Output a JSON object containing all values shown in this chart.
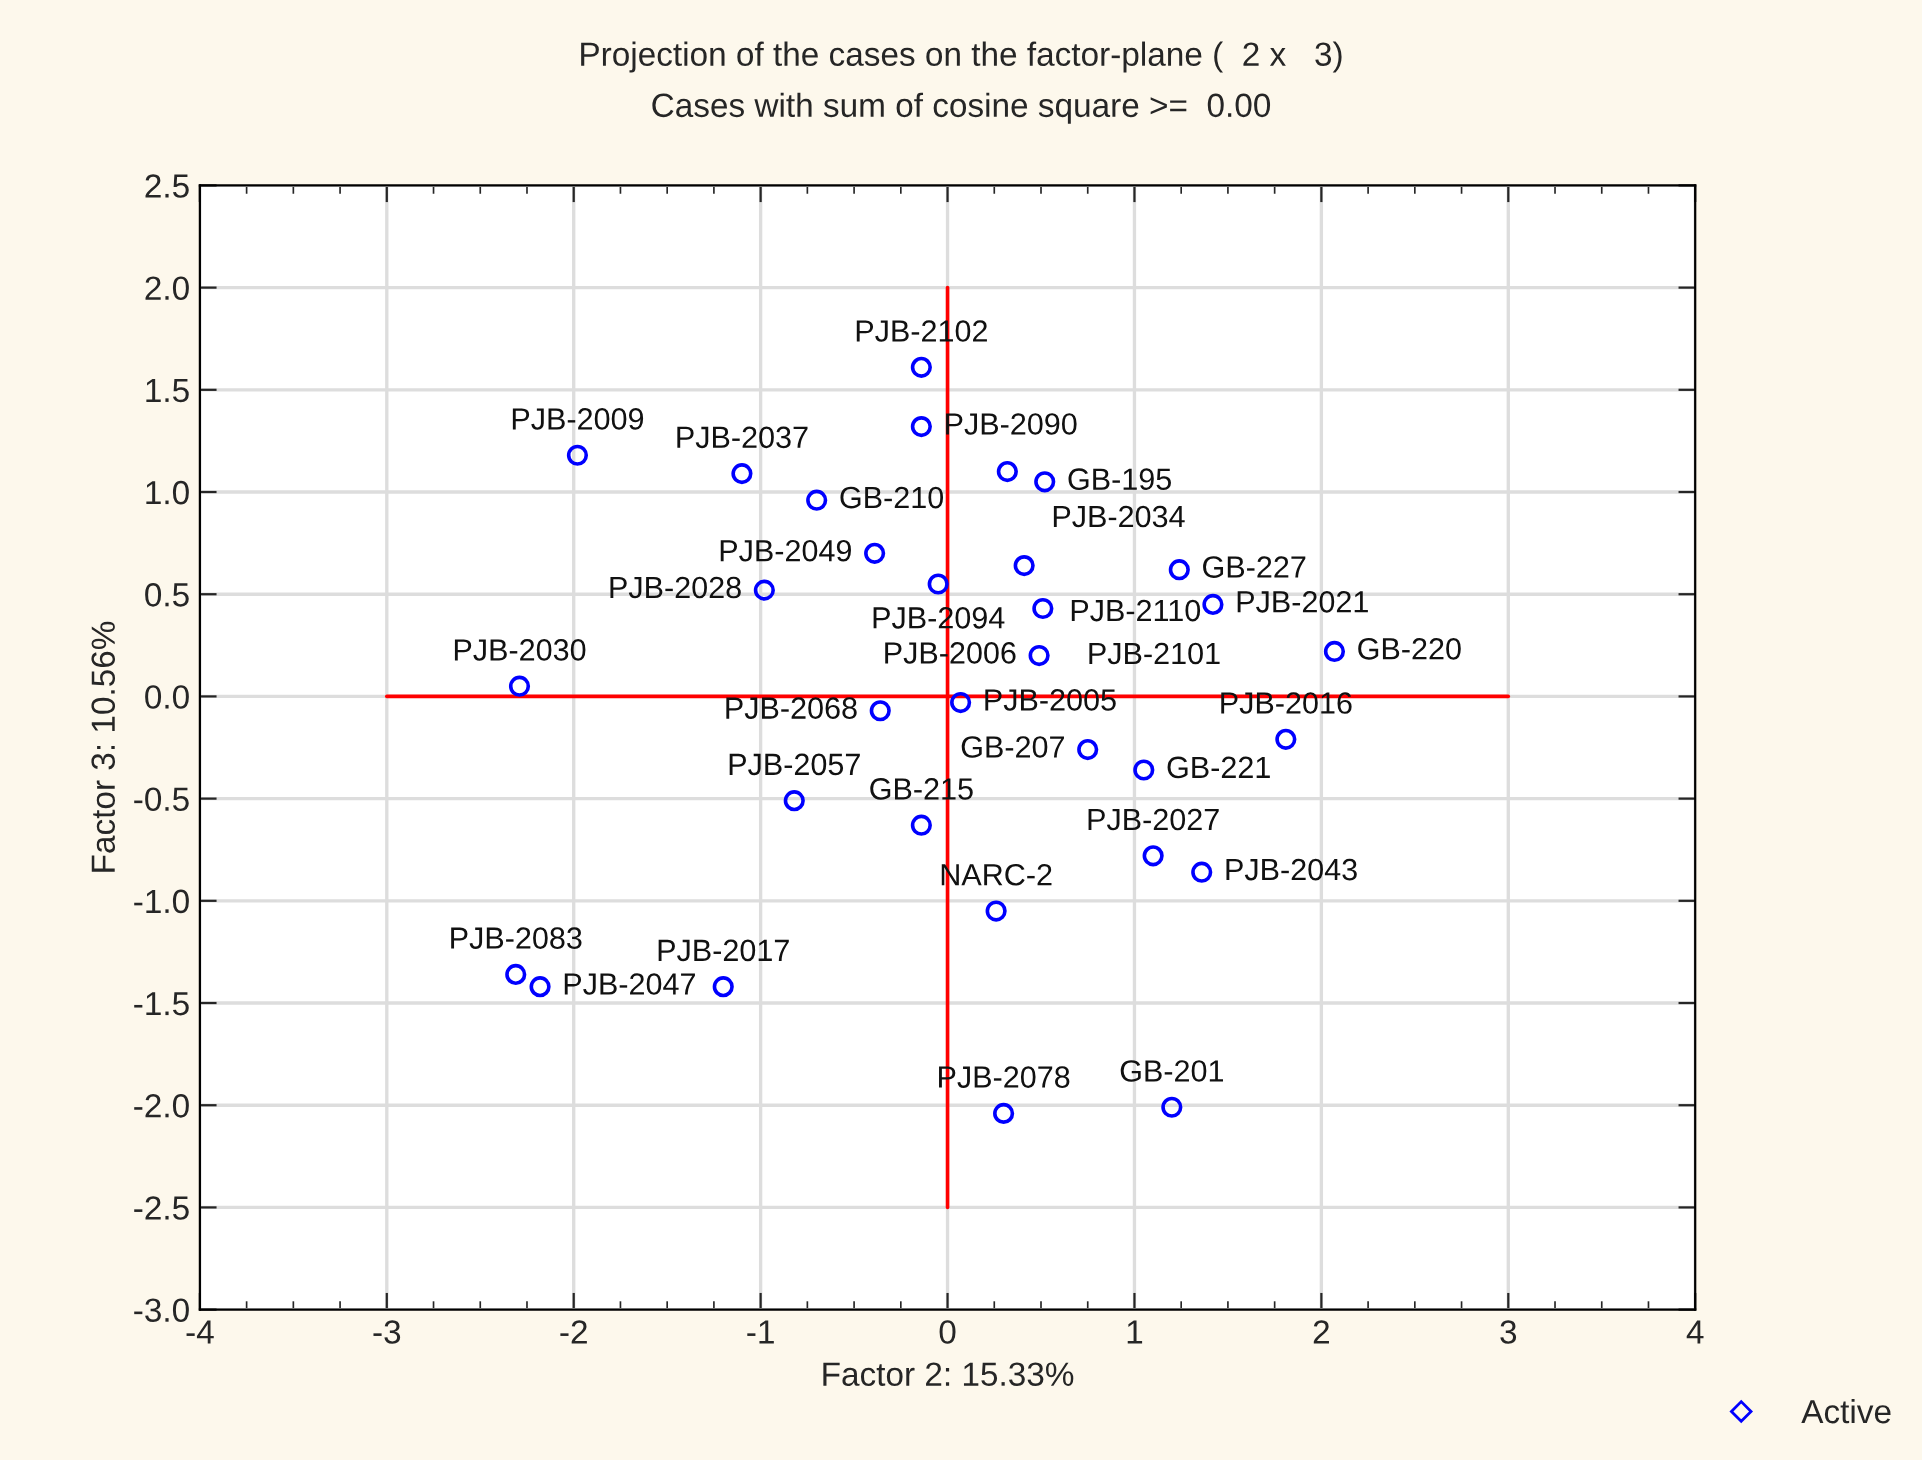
{
  "chart_data": {
    "type": "scatter",
    "title": "Projection of the cases on the factor-plane (  2 x   3)",
    "subtitle": "Cases with sum of cosine square >=  0.00",
    "xlabel": "Factor 2: 15.33%",
    "ylabel": "Factor 3: 10.56%",
    "xlim": [
      -4,
      4
    ],
    "xticks": [
      -4,
      -3,
      -2,
      -1,
      0,
      1,
      2,
      3,
      4
    ],
    "ylim": [
      -3.0,
      2.5
    ],
    "yticks": [
      {
        "value": -3.0,
        "label": "-3.0"
      },
      {
        "value": -2.5,
        "label": "-2.5"
      },
      {
        "value": -2.0,
        "label": "-2.0"
      },
      {
        "value": -1.5,
        "label": "-1.5"
      },
      {
        "value": -1.0,
        "label": "-1.0"
      },
      {
        "value": -0.5,
        "label": "-0.5"
      },
      {
        "value": 0.0,
        "label": "0.0"
      },
      {
        "value": 0.5,
        "label": "0.5"
      },
      {
        "value": 1.0,
        "label": "1.0"
      },
      {
        "value": 1.5,
        "label": "1.5"
      },
      {
        "value": 2.0,
        "label": "2.0"
      },
      {
        "value": 2.5,
        "label": "2.5"
      }
    ],
    "grid": true,
    "legend": "bottom right",
    "marker": "circle",
    "series": [
      {
        "name": "Active",
        "color": "#0000ff",
        "x": [
          -0.14,
          -0.14,
          -1.98,
          -1.1,
          -0.7,
          -0.39,
          -0.05,
          -0.98,
          -2.29,
          0.32,
          0.52,
          0.41,
          1.24,
          1.42,
          0.51,
          0.49,
          2.07,
          -0.36,
          0.07,
          0.75,
          1.05,
          1.81,
          -0.82,
          -0.14,
          1.1,
          1.36,
          0.26,
          -2.31,
          -2.18,
          -1.2,
          0.3,
          1.2
        ],
        "values": [
          1.61,
          1.32,
          1.18,
          1.09,
          0.96,
          0.7,
          0.55,
          0.52,
          0.05,
          1.1,
          1.05,
          0.64,
          0.62,
          0.45,
          0.43,
          0.2,
          0.22,
          -0.07,
          -0.03,
          -0.26,
          -0.36,
          -0.21,
          -0.51,
          -0.63,
          -0.78,
          -0.86,
          -1.05,
          -1.36,
          -1.42,
          -1.42,
          -2.04,
          -2.01
        ]
      },
      {
        "type": "line",
        "color": "#ff0000",
        "marker": "none",
        "x": [
          -3,
          3
        ],
        "values": [
          0,
          0
        ]
      },
      {
        "type": "line",
        "color": "#ff0000",
        "marker": "none",
        "x": [
          0,
          0
        ],
        "values": [
          2.0,
          -2.5
        ]
      }
    ],
    "annotations": [
      {
        "text": "PJB-2102",
        "x": -0.14,
        "y": 1.61
      },
      {
        "text": "PJB-2090",
        "x": -0.14,
        "y": 1.32
      },
      {
        "text": "PJB-2009",
        "x": -1.98,
        "y": 1.18
      },
      {
        "text": "PJB-2037",
        "x": -1.1,
        "y": 1.09
      },
      {
        "text": "GB-210",
        "x": -0.7,
        "y": 0.96
      },
      {
        "text": "PJB-2049",
        "x": -0.39,
        "y": 0.7
      },
      {
        "text": "PJB-2094",
        "x": -0.05,
        "y": 0.55
      },
      {
        "text": "PJB-2028",
        "x": -0.98,
        "y": 0.52
      },
      {
        "text": "PJB-2030",
        "x": -2.29,
        "y": 0.05
      },
      {
        "text": "PJB-2034",
        "x": 0.32,
        "y": 1.1
      },
      {
        "text": "GB-195",
        "x": 0.52,
        "y": 1.05
      },
      {
        "text": "PJB-2110",
        "x": 0.41,
        "y": 0.64
      },
      {
        "text": "GB-227",
        "x": 1.24,
        "y": 0.62
      },
      {
        "text": "PJB-2021",
        "x": 1.42,
        "y": 0.45
      },
      {
        "text": "PJB-2101",
        "x": 0.51,
        "y": 0.43
      },
      {
        "text": "PJB-2006",
        "x": 0.49,
        "y": 0.2
      },
      {
        "text": "GB-220",
        "x": 2.07,
        "y": 0.22
      },
      {
        "text": "PJB-2068",
        "x": -0.36,
        "y": -0.07
      },
      {
        "text": "PJB-2005",
        "x": 0.07,
        "y": -0.03
      },
      {
        "text": "GB-207",
        "x": 0.75,
        "y": -0.26
      },
      {
        "text": "GB-221",
        "x": 1.05,
        "y": -0.36
      },
      {
        "text": "PJB-2016",
        "x": 1.81,
        "y": -0.21
      },
      {
        "text": "PJB-2057",
        "x": -0.82,
        "y": -0.51
      },
      {
        "text": "GB-215",
        "x": -0.14,
        "y": -0.63
      },
      {
        "text": "PJB-2027",
        "x": 1.1,
        "y": -0.78
      },
      {
        "text": "PJB-2043",
        "x": 1.36,
        "y": -0.86
      },
      {
        "text": "NARC-2",
        "x": 0.26,
        "y": -1.05
      },
      {
        "text": "PJB-2083",
        "x": -2.31,
        "y": -1.36
      },
      {
        "text": "PJB-2047",
        "x": -2.18,
        "y": -1.42
      },
      {
        "text": "PJB-2017",
        "x": -1.2,
        "y": -1.42
      },
      {
        "text": "PJB-2078",
        "x": 0.3,
        "y": -2.04
      },
      {
        "text": "GB-201",
        "x": 1.2,
        "y": -2.01
      }
    ]
  }
}
